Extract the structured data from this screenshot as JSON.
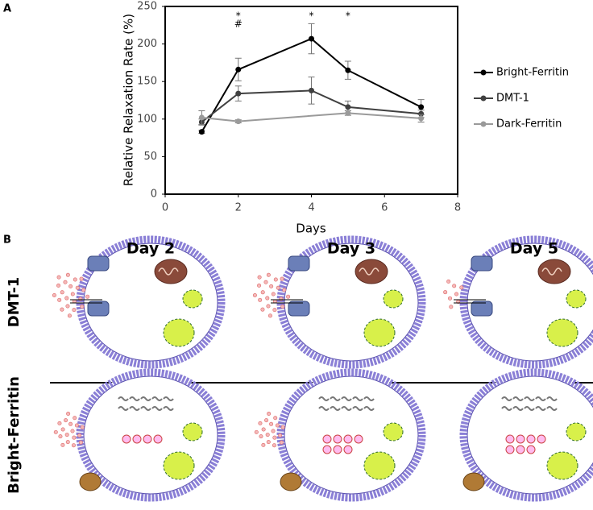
{
  "panel_labels": [
    "A",
    "B"
  ],
  "chart_data": {
    "type": "line",
    "xlabel": "Days",
    "ylabel": "Relative Relaxation Rate (%)",
    "xlim": [
      0,
      8
    ],
    "xticks": [
      0,
      2,
      4,
      6,
      8
    ],
    "ylim": [
      0,
      250
    ],
    "yticks": [
      0,
      50,
      100,
      150,
      200,
      250
    ],
    "grid": false,
    "legend": "right",
    "series": [
      {
        "name": "Bright-Ferritin",
        "color": "#000000",
        "x": [
          1,
          2,
          4,
          5,
          7
        ],
        "values": [
          83,
          166,
          207,
          165,
          116
        ],
        "errors": [
          2,
          15,
          20,
          12,
          10
        ]
      },
      {
        "name": "DMT-1",
        "color": "#404040",
        "x": [
          1,
          2,
          4,
          5,
          7
        ],
        "values": [
          96,
          134,
          138,
          116,
          107
        ],
        "errors": [
          4,
          10,
          18,
          8,
          5
        ]
      },
      {
        "name": "Dark-Ferritin",
        "color": "#9a9a9a",
        "x": [
          1,
          2,
          5,
          7
        ],
        "values": [
          102,
          97,
          108,
          101
        ],
        "errors": [
          9,
          2,
          3,
          5
        ]
      }
    ],
    "annotations": [
      {
        "text": "*",
        "x": 2
      },
      {
        "text": "#",
        "x": 2
      },
      {
        "text": "*",
        "x": 4
      },
      {
        "text": "*",
        "x": 5
      }
    ]
  },
  "diagram": {
    "columns": [
      "Day 2",
      "Day 3",
      "Day 5"
    ],
    "rows": [
      "DMT-1",
      "Bright-Ferritin"
    ]
  }
}
